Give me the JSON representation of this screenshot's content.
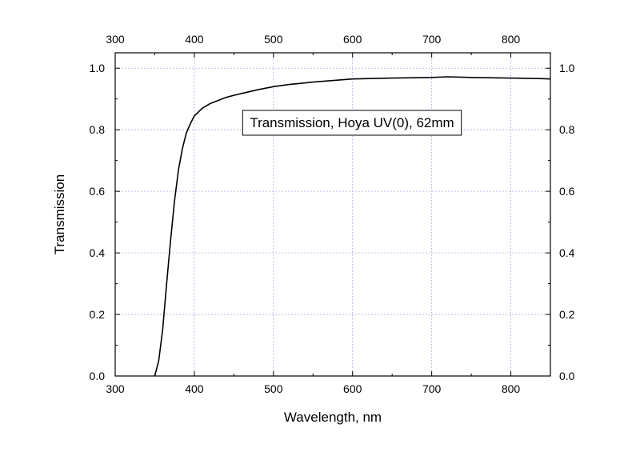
{
  "chart_data": {
    "type": "line",
    "title": "",
    "xlabel": "Wavelength, nm",
    "ylabel": "Transmission",
    "xlim": [
      300,
      850
    ],
    "ylim": [
      0.0,
      1.05
    ],
    "x_ticks": [
      "300",
      "400",
      "500",
      "600",
      "700",
      "800"
    ],
    "x_top_ticks": [
      "300",
      "400",
      "500",
      "600",
      "700",
      "800"
    ],
    "y_ticks": [
      "0.0",
      "0.2",
      "0.4",
      "0.6",
      "0.8",
      "1.0"
    ],
    "y_right_ticks": [
      "0.0",
      "0.2",
      "0.4",
      "0.6",
      "0.8",
      "1.0"
    ],
    "grid": true,
    "annotation": "Transmission, Hoya UV(0), 62mm",
    "line_color": "#000000",
    "grid_color": "#9999dd",
    "series": [
      {
        "name": "",
        "x": [
          350,
          355,
          360,
          365,
          370,
          375,
          380,
          385,
          390,
          395,
          400,
          410,
          420,
          430,
          440,
          450,
          460,
          480,
          500,
          520,
          550,
          600,
          650,
          700,
          720,
          750,
          800,
          820,
          840,
          850
        ],
        "y": [
          0.0,
          0.05,
          0.15,
          0.3,
          0.44,
          0.57,
          0.67,
          0.74,
          0.79,
          0.82,
          0.845,
          0.87,
          0.885,
          0.895,
          0.905,
          0.912,
          0.918,
          0.93,
          0.94,
          0.947,
          0.955,
          0.965,
          0.968,
          0.97,
          0.972,
          0.97,
          0.968,
          0.967,
          0.966,
          0.965
        ]
      }
    ]
  }
}
